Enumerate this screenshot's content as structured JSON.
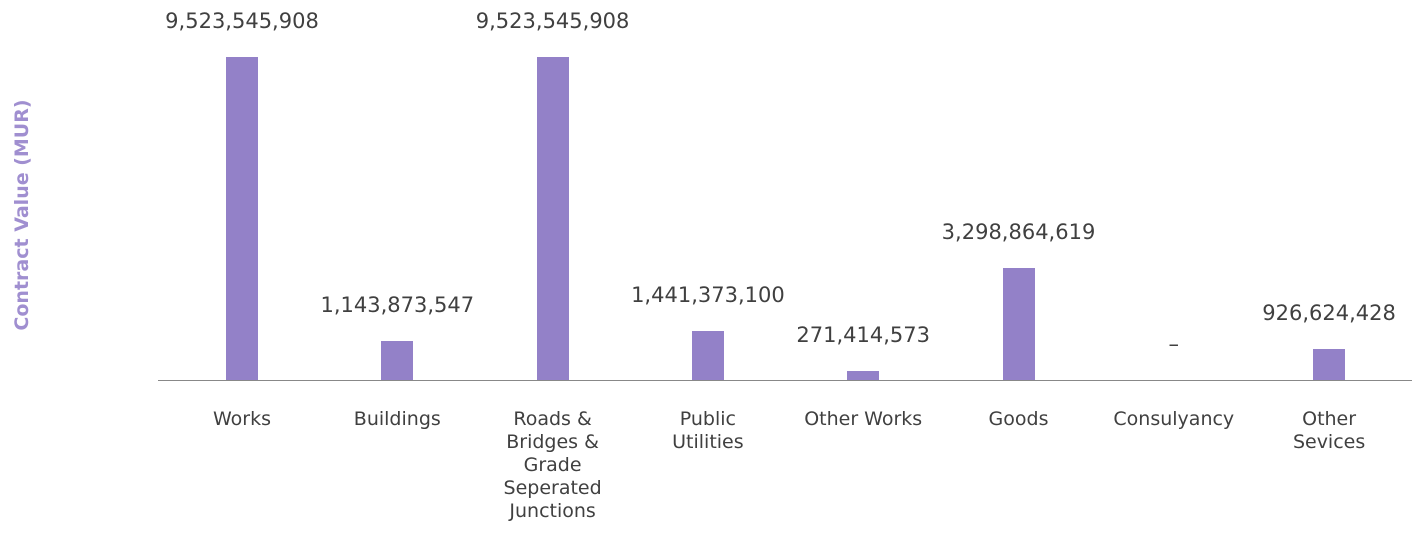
{
  "chart_data": {
    "type": "bar",
    "y_axis_label": "Contract Value (MUR)",
    "categories": [
      "Works",
      "Buildings",
      "Roads & Bridges & Grade Seperated Junctions",
      "Public Utilities",
      "Other Works",
      "Goods",
      "Consulyancy",
      "Other Sevices"
    ],
    "values": [
      9523545908,
      1143873547,
      9523545908,
      1441373100,
      271414573,
      3298864619,
      null,
      926624428
    ],
    "value_labels": [
      "9,523,545,908",
      "1,143,873,547",
      "9,523,545,908",
      "1,441,373,100",
      "271,414,573",
      "3,298,864,619",
      "–",
      "926,624,428"
    ],
    "color": "#9381c8"
  }
}
